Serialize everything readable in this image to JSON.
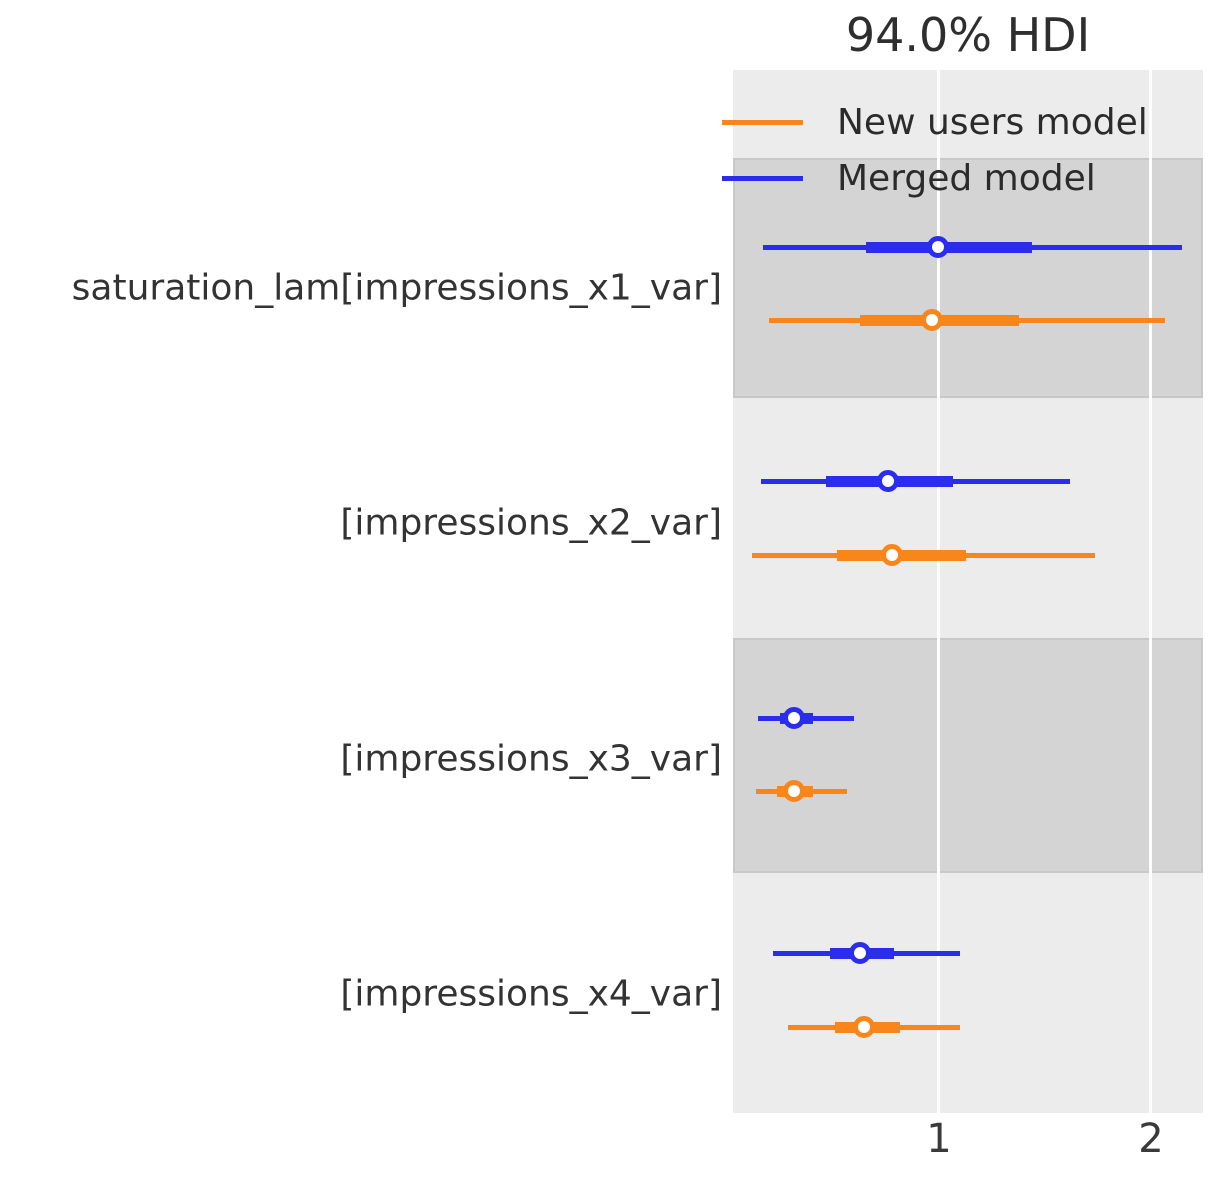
{
  "title": "94.0% HDI",
  "legend": [
    {
      "label": "New users model",
      "color": "#f8861b"
    },
    {
      "label": "Merged model",
      "color": "#2a2eec"
    }
  ],
  "chart_data": {
    "type": "forest",
    "title": "94.0% HDI",
    "hdi_prob": "94.0%",
    "xlabel": "",
    "xlim": [
      0.03,
      2.25
    ],
    "x_ticks": [
      1,
      2
    ],
    "x_tick_labels": [
      "1",
      "2"
    ],
    "grid": "vertical white gridlines",
    "legend_position": "upper left inside plot",
    "rows": [
      {
        "label": "saturation_lam[impressions_x1_var]",
        "shaded": true,
        "series": [
          {
            "name": "Merged model",
            "color": "#2a2eec",
            "hdi_94": [
              0.17,
              2.15
            ],
            "iqr": [
              0.66,
              1.44
            ],
            "median": 1.0
          },
          {
            "name": "New users model",
            "color": "#f8861b",
            "hdi_94": [
              0.2,
              2.07
            ],
            "iqr": [
              0.63,
              1.38
            ],
            "median": 0.97
          }
        ]
      },
      {
        "label": "[impressions_x2_var]",
        "shaded": false,
        "series": [
          {
            "name": "Merged model",
            "color": "#2a2eec",
            "hdi_94": [
              0.16,
              1.62
            ],
            "iqr": [
              0.47,
              1.07
            ],
            "median": 0.76
          },
          {
            "name": "New users model",
            "color": "#f8861b",
            "hdi_94": [
              0.12,
              1.74
            ],
            "iqr": [
              0.52,
              1.13
            ],
            "median": 0.78
          }
        ]
      },
      {
        "label": "[impressions_x3_var]",
        "shaded": true,
        "series": [
          {
            "name": "Merged model",
            "color": "#2a2eec",
            "hdi_94": [
              0.15,
              0.6
            ],
            "iqr": [
              0.25,
              0.41
            ],
            "median": 0.32
          },
          {
            "name": "New users model",
            "color": "#f8861b",
            "hdi_94": [
              0.14,
              0.57
            ],
            "iqr": [
              0.24,
              0.41
            ],
            "median": 0.32
          }
        ]
      },
      {
        "label": "[impressions_x4_var]",
        "shaded": false,
        "series": [
          {
            "name": "Merged model",
            "color": "#2a2eec",
            "hdi_94": [
              0.22,
              1.1
            ],
            "iqr": [
              0.49,
              0.79
            ],
            "median": 0.63
          },
          {
            "name": "New users model",
            "color": "#f8861b",
            "hdi_94": [
              0.29,
              1.1
            ],
            "iqr": [
              0.51,
              0.82
            ],
            "median": 0.65
          }
        ]
      }
    ]
  }
}
